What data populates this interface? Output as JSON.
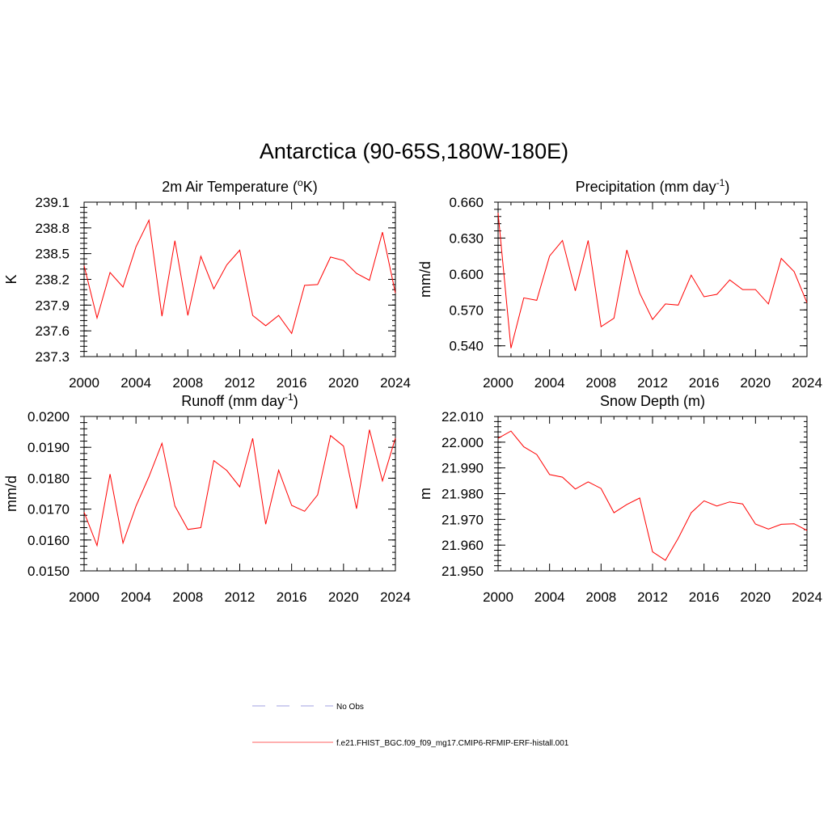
{
  "title": "Antarctica (90-65S,180W-180E)",
  "legend": [
    {
      "label": "No Obs",
      "color": "#a0a0e0",
      "style": "dashed"
    },
    {
      "label": "f.e21.FHIST_BGC.f09_f09_mg17.CMIP6-RFMIP-ERF-histall.001",
      "color": "#ff6060",
      "style": "solid"
    }
  ],
  "line_color": "#ff0000",
  "chart_data": [
    {
      "type": "line",
      "title": "2m Air Temperature (°K)",
      "title_main": "2m Air Temperature (",
      "title_sup": "o",
      "title_end": "K)",
      "ylabel": "K",
      "xlim": [
        2000,
        2024
      ],
      "ylim": [
        237.3,
        239.1
      ],
      "xticks": [
        2000,
        2004,
        2008,
        2012,
        2016,
        2020,
        2024
      ],
      "xtick_labels": [
        "2000",
        "2004",
        "2008",
        "2012",
        "2016",
        "2020",
        "2024"
      ],
      "yticks": [
        237.3,
        237.6,
        237.9,
        238.2,
        238.5,
        238.8,
        239.1
      ],
      "ytick_labels": [
        "237.3",
        "237.6",
        "237.9",
        "238.2",
        "238.5",
        "238.8",
        "239.1"
      ],
      "y_minor_step": 0.06,
      "x": [
        2000,
        2001,
        2002,
        2003,
        2004,
        2005,
        2006,
        2007,
        2008,
        2009,
        2010,
        2011,
        2012,
        2013,
        2014,
        2015,
        2016,
        2017,
        2018,
        2019,
        2020,
        2021,
        2022,
        2023,
        2024
      ],
      "series": [
        {
          "name": "f.e21.FHIST_BGC.f09_f09_mg17.CMIP6-RFMIP-ERF-histall.001",
          "values": [
            238.36,
            237.75,
            238.28,
            238.11,
            238.58,
            238.89,
            237.77,
            238.65,
            237.78,
            238.47,
            238.09,
            238.37,
            238.54,
            237.78,
            237.66,
            237.78,
            237.57,
            238.13,
            238.14,
            238.46,
            238.42,
            238.27,
            238.19,
            238.75,
            238.04
          ]
        }
      ]
    },
    {
      "type": "line",
      "title": "Precipitation (mm day-1)",
      "title_main": "Precipitation (mm day",
      "title_sup": "-1",
      "title_end": ")",
      "ylabel": "mm/d",
      "xlim": [
        2000,
        2024
      ],
      "ylim": [
        0.531,
        0.66
      ],
      "xticks": [
        2000,
        2004,
        2008,
        2012,
        2016,
        2020,
        2024
      ],
      "xtick_labels": [
        "2000",
        "2004",
        "2008",
        "2012",
        "2016",
        "2020",
        "2024"
      ],
      "yticks": [
        0.54,
        0.57,
        0.6,
        0.63,
        0.66
      ],
      "ytick_labels": [
        "0.540",
        "0.570",
        "0.600",
        "0.630",
        "0.660"
      ],
      "y_minor_step": 0.006,
      "x": [
        2000,
        2001,
        2002,
        2003,
        2004,
        2005,
        2006,
        2007,
        2008,
        2009,
        2010,
        2011,
        2012,
        2013,
        2014,
        2015,
        2016,
        2017,
        2018,
        2019,
        2020,
        2021,
        2022,
        2023,
        2024
      ],
      "series": [
        {
          "name": "f.e21.FHIST_BGC.f09_f09_mg17.CMIP6-RFMIP-ERF-histall.001",
          "values": [
            0.651,
            0.538,
            0.58,
            0.578,
            0.615,
            0.628,
            0.586,
            0.628,
            0.556,
            0.563,
            0.62,
            0.584,
            0.562,
            0.575,
            0.574,
            0.599,
            0.581,
            0.583,
            0.595,
            0.587,
            0.587,
            0.575,
            0.613,
            0.602,
            0.576
          ]
        }
      ]
    },
    {
      "type": "line",
      "title": "Runoff (mm day-1)",
      "title_main": "Runoff (mm day",
      "title_sup": "-1",
      "title_end": ")",
      "ylabel": "mm/d",
      "xlim": [
        2000,
        2024
      ],
      "ylim": [
        0.015,
        0.02
      ],
      "xticks": [
        2000,
        2004,
        2008,
        2012,
        2016,
        2020,
        2024
      ],
      "xtick_labels": [
        "2000",
        "2004",
        "2008",
        "2012",
        "2016",
        "2020",
        "2024"
      ],
      "yticks": [
        0.015,
        0.016,
        0.017,
        0.018,
        0.019,
        0.02
      ],
      "ytick_labels": [
        "0.0150",
        "0.0160",
        "0.0170",
        "0.0180",
        "0.0190",
        "0.0200"
      ],
      "y_minor_step": 0.0002,
      "x": [
        2000,
        2001,
        2002,
        2003,
        2004,
        2005,
        2006,
        2007,
        2008,
        2009,
        2010,
        2011,
        2012,
        2013,
        2014,
        2015,
        2016,
        2017,
        2018,
        2019,
        2020,
        2021,
        2022,
        2023,
        2024
      ],
      "series": [
        {
          "name": "f.e21.FHIST_BGC.f09_f09_mg17.CMIP6-RFMIP-ERF-histall.001",
          "values": [
            0.0169,
            0.01582,
            0.01813,
            0.0159,
            0.0171,
            0.01805,
            0.01913,
            0.0171,
            0.01634,
            0.0164,
            0.01857,
            0.01825,
            0.01772,
            0.01929,
            0.01651,
            0.01826,
            0.01712,
            0.01693,
            0.01746,
            0.01938,
            0.01904,
            0.01701,
            0.01957,
            0.01791,
            0.0193
          ]
        }
      ]
    },
    {
      "type": "line",
      "title": "Snow Depth (m)",
      "title_main": "Snow Depth (m)",
      "title_sup": "",
      "title_end": "",
      "ylabel": "m",
      "xlim": [
        2000,
        2024
      ],
      "ylim": [
        21.95,
        22.01
      ],
      "xticks": [
        2000,
        2004,
        2008,
        2012,
        2016,
        2020,
        2024
      ],
      "xtick_labels": [
        "2000",
        "2004",
        "2008",
        "2012",
        "2016",
        "2020",
        "2024"
      ],
      "yticks": [
        21.95,
        21.96,
        21.97,
        21.98,
        21.99,
        22.0,
        22.01
      ],
      "ytick_labels": [
        "21.950",
        "21.960",
        "21.970",
        "21.980",
        "21.990",
        "22.000",
        "22.010"
      ],
      "y_minor_step": 0.002,
      "x": [
        2000,
        2001,
        2002,
        2003,
        2004,
        2005,
        2006,
        2007,
        2008,
        2009,
        2010,
        2011,
        2012,
        2013,
        2014,
        2015,
        2016,
        2017,
        2018,
        2019,
        2020,
        2021,
        2022,
        2023,
        2024
      ],
      "series": [
        {
          "name": "f.e21.FHIST_BGC.f09_f09_mg17.CMIP6-RFMIP-ERF-histall.001",
          "values": [
            22.0015,
            22.0043,
            21.9982,
            21.9952,
            21.9874,
            21.9864,
            21.9818,
            21.9846,
            21.982,
            21.9726,
            21.9758,
            21.9783,
            21.9574,
            21.9541,
            21.9627,
            21.9726,
            21.9772,
            21.9752,
            21.9768,
            21.976,
            21.9682,
            21.9662,
            21.9681,
            21.9683,
            21.9657
          ]
        }
      ]
    }
  ]
}
